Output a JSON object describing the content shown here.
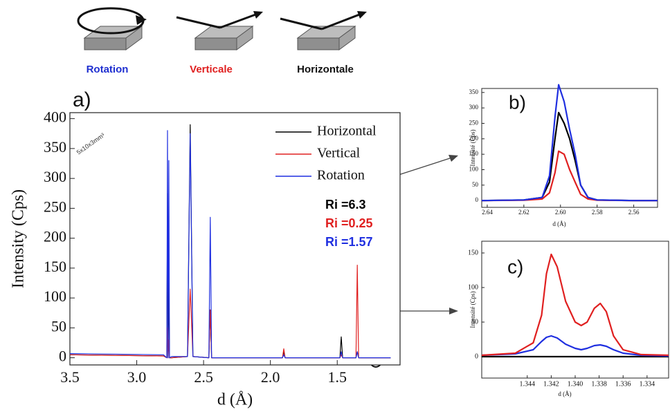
{
  "header": {
    "labels": [
      {
        "text": "Rotation",
        "color": "#1f2fd0"
      },
      {
        "text": "Verticale",
        "color": "#e02020"
      },
      {
        "text": "Horizontale",
        "color": "#111111"
      }
    ]
  },
  "chart_data": [
    {
      "type": "line",
      "panel_label": "a)",
      "inset_label": "5x10x3mm³",
      "y_label": "Intensity (Cps)",
      "x_label": "d (Å)",
      "x": [
        3.5,
        2.8,
        2.775,
        2.77,
        2.765,
        2.76,
        2.755,
        2.74,
        2.62,
        2.6,
        2.58,
        2.46,
        2.45,
        2.44,
        1.91,
        1.9,
        1.89,
        1.48,
        1.47,
        1.46,
        1.36,
        1.35,
        1.34,
        1.1
      ],
      "series": [
        {
          "name": "Horizontal",
          "color": "#000000",
          "values": [
            5,
            3,
            0,
            275,
            0,
            140,
            0,
            0,
            2,
            390,
            2,
            0,
            80,
            0,
            0,
            10,
            0,
            0,
            35,
            0,
            0,
            10,
            0,
            0
          ]
        },
        {
          "name": "Vertical",
          "color": "#e02020",
          "values": [
            5,
            3,
            0,
            50,
            0,
            30,
            0,
            0,
            2,
            115,
            2,
            0,
            80,
            0,
            0,
            15,
            0,
            0,
            5,
            0,
            0,
            155,
            0,
            0
          ]
        },
        {
          "name": "Rotation",
          "color": "#1f2fe0",
          "values": [
            7,
            5,
            0,
            380,
            0,
            330,
            0,
            2,
            2,
            375,
            2,
            0,
            235,
            0,
            0,
            5,
            0,
            0,
            10,
            0,
            0,
            10,
            0,
            0
          ]
        }
      ],
      "xlim": [
        3.5,
        1.03
      ],
      "xticks": [
        3.5,
        {
          "value": 3,
          "label": "3.0"
        },
        2.5,
        {
          "value": 2,
          "label": "2.0"
        },
        1.5
      ],
      "ylim": [
        -12,
        410
      ],
      "yticks": [
        0,
        50,
        100,
        150,
        200,
        250,
        300,
        350,
        400
      ],
      "legend": "upper right",
      "annotations": [
        {
          "text": "Ri =6.3",
          "color": "#000000"
        },
        {
          "text": "Ri =0.25",
          "color": "#e02020"
        },
        {
          "text": "Ri =1.57",
          "color": "#1f2fe0"
        }
      ]
    },
    {
      "type": "line",
      "panel_label": "b)",
      "y_label": "Intensité (Cps)",
      "x_label": "d (Å)",
      "x": [
        2.643,
        2.62,
        2.61,
        2.606,
        2.603,
        2.601,
        2.598,
        2.595,
        2.592,
        2.589,
        2.585,
        2.58,
        2.56,
        2.547
      ],
      "series": [
        {
          "color": "#000000",
          "values": [
            0,
            2,
            10,
            60,
            200,
            285,
            250,
            200,
            130,
            50,
            10,
            2,
            0,
            0
          ]
        },
        {
          "color": "#e02020",
          "values": [
            0,
            1,
            5,
            25,
            90,
            160,
            150,
            100,
            60,
            20,
            5,
            1,
            0,
            0
          ]
        },
        {
          "color": "#1f2fe0",
          "values": [
            0,
            2,
            10,
            80,
            270,
            375,
            320,
            230,
            150,
            50,
            10,
            2,
            0,
            0
          ]
        }
      ],
      "xlim": [
        2.643,
        2.547
      ],
      "xticks": [
        2.64,
        2.62,
        {
          "value": 2.6,
          "label": "2.60"
        },
        2.58,
        2.56
      ],
      "ylim": [
        -22,
        363
      ],
      "yticks": [
        0,
        50,
        100,
        150,
        200,
        250,
        300,
        350
      ]
    },
    {
      "type": "line",
      "panel_label": "c)",
      "y_label": "Intensité (Cps)",
      "x_label": "d (Å)",
      "x": [
        1.3478,
        1.345,
        1.3435,
        1.3428,
        1.3424,
        1.342,
        1.3415,
        1.3408,
        1.34,
        1.3395,
        1.339,
        1.3384,
        1.3379,
        1.3374,
        1.3368,
        1.336,
        1.3345,
        1.3322
      ],
      "series": [
        {
          "color": "#000000",
          "values": [
            0,
            0,
            0,
            0,
            0,
            0,
            0,
            0,
            0,
            0,
            0,
            0,
            0,
            0,
            0,
            0,
            0,
            0
          ]
        },
        {
          "color": "#1f2fe0",
          "values": [
            2,
            4,
            10,
            22,
            28,
            30,
            27,
            18,
            12,
            10,
            12,
            16,
            17,
            15,
            10,
            5,
            2,
            1
          ]
        },
        {
          "color": "#e02020",
          "values": [
            2,
            5,
            20,
            60,
            120,
            148,
            130,
            80,
            50,
            45,
            50,
            70,
            77,
            65,
            30,
            10,
            3,
            2
          ]
        }
      ],
      "xlim": [
        1.3478,
        1.3322
      ],
      "xticks": [
        1.344,
        1.342,
        {
          "value": 1.34,
          "label": "1.340"
        },
        1.338,
        1.336,
        1.334
      ],
      "ylim": [
        -31,
        167
      ],
      "yticks": [
        0,
        50,
        100,
        150
      ]
    }
  ]
}
